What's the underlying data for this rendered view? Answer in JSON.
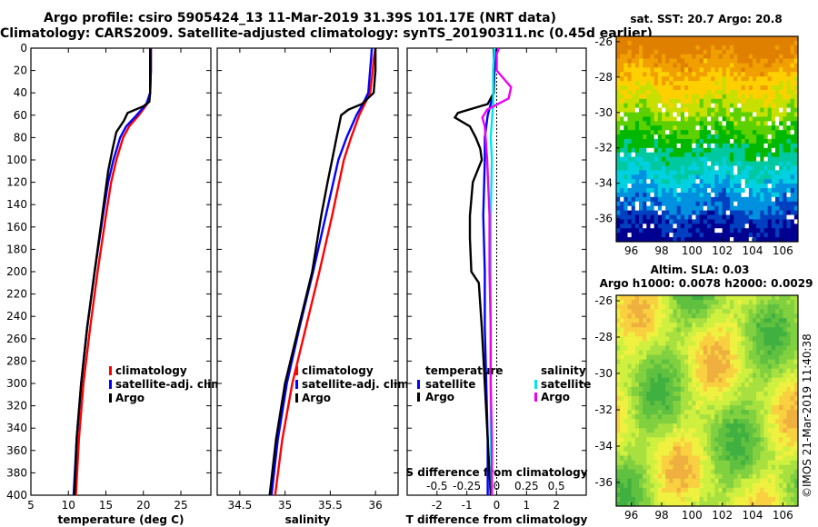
{
  "titles": {
    "line1": "Argo profile: csiro 5905424_13 11-Mar-2019 31.39S 101.17E (NRT data)",
    "line2": "Climatology: CARS2009. Satellite-adjusted climatology: synTS_20190311.nc (0.45d earlier)"
  },
  "colors": {
    "climatology": "#ff0000",
    "satellite": "#0000ff",
    "argo": "#000000",
    "sat_salinity": "#00e5ee",
    "argo_salinity": "#ee00ee"
  },
  "chart_data": [
    {
      "type": "line",
      "name": "temperature",
      "xlabel": "temperature (deg C)",
      "ylabel": "",
      "xlim": [
        5,
        29
      ],
      "ylim": [
        400,
        0
      ],
      "xticks": [
        "5",
        "10",
        "15",
        "20",
        "25"
      ],
      "yticks": [
        "0",
        "20",
        "40",
        "60",
        "80",
        "100",
        "120",
        "140",
        "160",
        "180",
        "200",
        "220",
        "240",
        "260",
        "280",
        "300",
        "320",
        "340",
        "360",
        "380",
        "400"
      ],
      "legend": [
        "climatology",
        "satellite-adj. clim.",
        "Argo"
      ],
      "series": [
        {
          "name": "climatology",
          "depth": [
            0,
            20,
            40,
            50,
            60,
            70,
            80,
            100,
            120,
            150,
            200,
            250,
            300,
            350,
            400
          ],
          "values": [
            21.0,
            21.0,
            20.9,
            20.5,
            19.4,
            18.1,
            17.3,
            16.4,
            15.7,
            15.0,
            13.9,
            12.9,
            12.0,
            11.4,
            11.0
          ]
        },
        {
          "name": "satellite-adj. clim.",
          "depth": [
            0,
            20,
            40,
            50,
            60,
            70,
            80,
            100,
            120,
            150,
            200,
            250,
            300,
            350,
            400
          ],
          "values": [
            21.0,
            21.0,
            20.9,
            20.4,
            19.1,
            17.7,
            16.9,
            16.0,
            15.3,
            14.6,
            13.5,
            12.5,
            11.7,
            11.1,
            10.7
          ]
        },
        {
          "name": "Argo",
          "depth": [
            0,
            20,
            40,
            48,
            52,
            58,
            65,
            75,
            90,
            110,
            150,
            200,
            250,
            300,
            350,
            400
          ],
          "values": [
            20.9,
            20.9,
            20.9,
            20.8,
            20.0,
            17.9,
            17.4,
            16.4,
            15.9,
            15.3,
            14.5,
            13.5,
            12.5,
            11.7,
            11.1,
            10.8
          ]
        }
      ]
    },
    {
      "type": "line",
      "name": "salinity",
      "xlabel": "salinity",
      "xlim": [
        34.25,
        36.25
      ],
      "ylim": [
        400,
        0
      ],
      "xticks": [
        "34.5",
        "35",
        "35.5",
        "36"
      ],
      "legend": [
        "climatology",
        "satellite-adj. clim.",
        "Argo"
      ],
      "series": [
        {
          "name": "climatology",
          "depth": [
            0,
            10,
            20,
            40,
            50,
            60,
            80,
            100,
            150,
            200,
            250,
            300,
            350,
            400
          ],
          "values": [
            36.0,
            35.98,
            35.97,
            35.94,
            35.88,
            35.82,
            35.73,
            35.65,
            35.52,
            35.38,
            35.23,
            35.08,
            34.97,
            34.89
          ]
        },
        {
          "name": "satellite-adj. clim.",
          "depth": [
            0,
            10,
            20,
            40,
            50,
            60,
            80,
            100,
            150,
            200,
            250,
            300,
            350,
            400
          ],
          "values": [
            35.96,
            35.95,
            35.94,
            35.92,
            35.86,
            35.79,
            35.68,
            35.59,
            35.45,
            35.31,
            35.16,
            35.02,
            34.92,
            34.85
          ]
        },
        {
          "name": "Argo",
          "depth": [
            0,
            20,
            40,
            50,
            55,
            60,
            80,
            100,
            120,
            150,
            200,
            250,
            300,
            350,
            400
          ],
          "values": [
            36.0,
            36.0,
            35.98,
            35.85,
            35.7,
            35.62,
            35.57,
            35.52,
            35.47,
            35.4,
            35.3,
            35.15,
            35.0,
            34.9,
            34.83
          ]
        }
      ]
    },
    {
      "type": "line",
      "name": "difference",
      "xlabel": "T difference from climatology",
      "xlabel_top": "S difference from climatology",
      "xlim": [
        -3,
        3
      ],
      "ylim": [
        400,
        0
      ],
      "xticks": [
        "-2",
        "-1",
        "0",
        "1",
        "2"
      ],
      "xticks_top": [
        "-0.5",
        "-0.25",
        "0",
        "0.25",
        "0.5"
      ],
      "legend_temperature": {
        "title": "temperature",
        "items": [
          "satellite",
          "Argo"
        ]
      },
      "legend_salinity": {
        "title": "salinity",
        "items": [
          "satellite",
          "Argo"
        ]
      },
      "series": [
        {
          "name": "temperature satellite",
          "depth": [
            0,
            40,
            60,
            80,
            100,
            150,
            200,
            250,
            300,
            350,
            400
          ],
          "values": [
            -0.05,
            -0.1,
            -0.3,
            -0.4,
            -0.4,
            -0.45,
            -0.4,
            -0.4,
            -0.35,
            -0.3,
            -0.3
          ]
        },
        {
          "name": "temperature Argo",
          "depth": [
            0,
            40,
            50,
            58,
            62,
            70,
            80,
            90,
            100,
            120,
            150,
            170,
            200,
            210,
            250,
            300,
            350,
            400
          ],
          "values": [
            -0.1,
            -0.1,
            -0.3,
            -1.3,
            -1.4,
            -0.9,
            -0.7,
            -0.55,
            -0.5,
            -0.8,
            -0.9,
            -0.9,
            -0.85,
            -0.6,
            -0.5,
            -0.4,
            -0.3,
            -0.2
          ]
        },
        {
          "name": "salinity satellite",
          "depth": [
            0,
            20,
            50,
            80,
            100,
            150,
            200,
            250,
            300,
            350,
            400
          ],
          "values": [
            -0.02,
            -0.03,
            -0.03,
            -0.05,
            -0.04,
            -0.05,
            -0.05,
            -0.05,
            -0.05,
            -0.05,
            -0.04
          ]
        },
        {
          "name": "salinity Argo",
          "depth": [
            0,
            5,
            20,
            35,
            45,
            55,
            62,
            70,
            100,
            150,
            200,
            250,
            300,
            350,
            400
          ],
          "values": [
            0.02,
            0.0,
            0.0,
            0.12,
            0.1,
            -0.08,
            -0.12,
            -0.1,
            -0.08,
            -0.06,
            -0.06,
            -0.05,
            -0.05,
            -0.04,
            -0.04
          ]
        }
      ]
    },
    {
      "type": "heatmap",
      "name": "sst_map",
      "title": "sat. SST: 20.7 Argo: 20.8",
      "xlim": [
        95,
        107
      ],
      "ylim": [
        -37.3,
        -25.7
      ],
      "xticks": [
        "96",
        "98",
        "100",
        "102",
        "104",
        "106"
      ],
      "yticks": [
        "-26",
        "-28",
        "-30",
        "-32",
        "-34",
        "-36"
      ]
    },
    {
      "type": "heatmap",
      "name": "sla_map",
      "title": "Altim. SLA: 0.03",
      "subtitle": "Argo h1000: 0.0078 h2000: 0.0029",
      "xlim": [
        95,
        107
      ],
      "ylim": [
        -37.3,
        -25.7
      ],
      "xticks": [
        "96",
        "98",
        "100",
        "102",
        "104",
        "106"
      ],
      "yticks": [
        "-26",
        "-28",
        "-30",
        "-32",
        "-34",
        "-36"
      ]
    }
  ],
  "watermark": "©IMOS 21-Mar-2019 11:40:38"
}
